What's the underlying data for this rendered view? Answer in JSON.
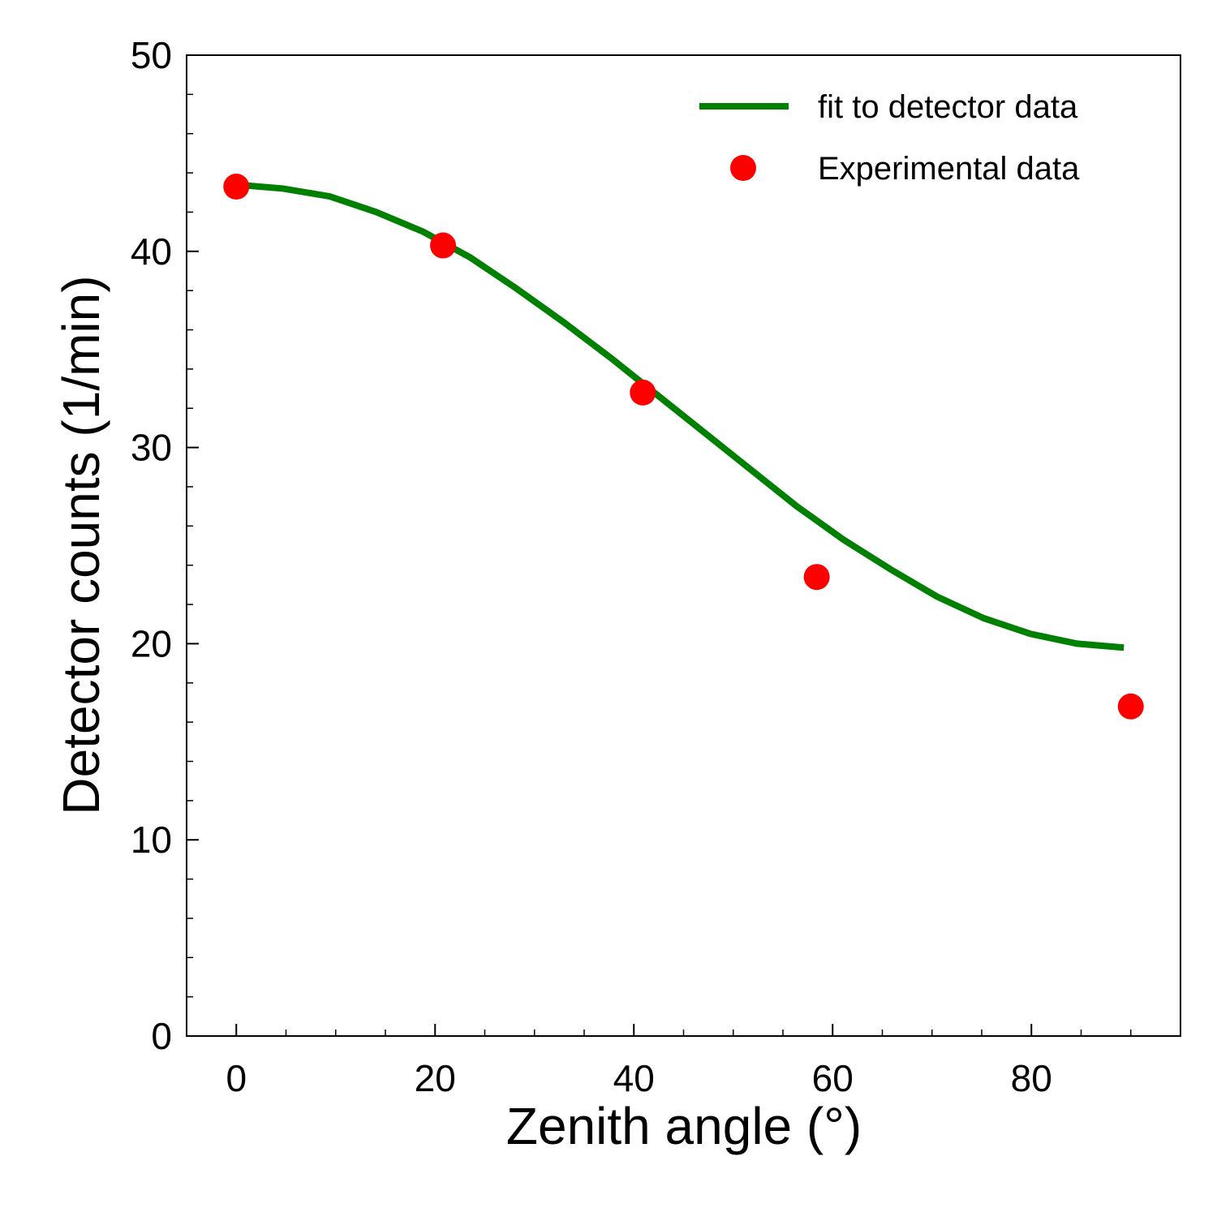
{
  "chart_data": {
    "type": "line-scatter",
    "xlabel": "Zenith angle (°)",
    "ylabel": "Detector counts (1/min)",
    "xlim": [
      -5,
      95
    ],
    "ylim": [
      0,
      50
    ],
    "xticks": [
      0,
      20,
      40,
      60,
      80
    ],
    "yticks": [
      0,
      10,
      20,
      30,
      40,
      50
    ],
    "xminorticks": [
      5,
      10,
      15,
      25,
      30,
      35,
      45,
      50,
      55,
      65,
      70,
      75,
      85,
      90
    ],
    "yminorticks": [
      2,
      4,
      6,
      8,
      12,
      14,
      16,
      18,
      22,
      24,
      26,
      28,
      32,
      34,
      36,
      38,
      42,
      44,
      46,
      48
    ],
    "legend": "upper right",
    "series": [
      {
        "name": "fit to detector data",
        "kind": "line",
        "color": "#008000",
        "x": [
          0,
          4.7,
          9.4,
          14.1,
          18.8,
          23.5,
          28.2,
          32.9,
          37.6,
          42.3,
          47.0,
          51.7,
          56.4,
          61.1,
          65.8,
          70.5,
          75.2,
          79.9,
          84.6,
          89.3
        ],
        "values": [
          43.4,
          43.2,
          42.8,
          42.0,
          41.0,
          39.7,
          38.1,
          36.4,
          34.6,
          32.7,
          30.8,
          28.9,
          27.0,
          25.3,
          23.8,
          22.4,
          21.3,
          20.5,
          20.0,
          19.8
        ]
      },
      {
        "name": "Experimental data",
        "kind": "scatter",
        "color": "#ff0000",
        "x": [
          0,
          20.8,
          40.9,
          58.4,
          90.0
        ],
        "values": [
          43.3,
          40.3,
          32.8,
          23.4,
          16.8
        ]
      }
    ]
  }
}
